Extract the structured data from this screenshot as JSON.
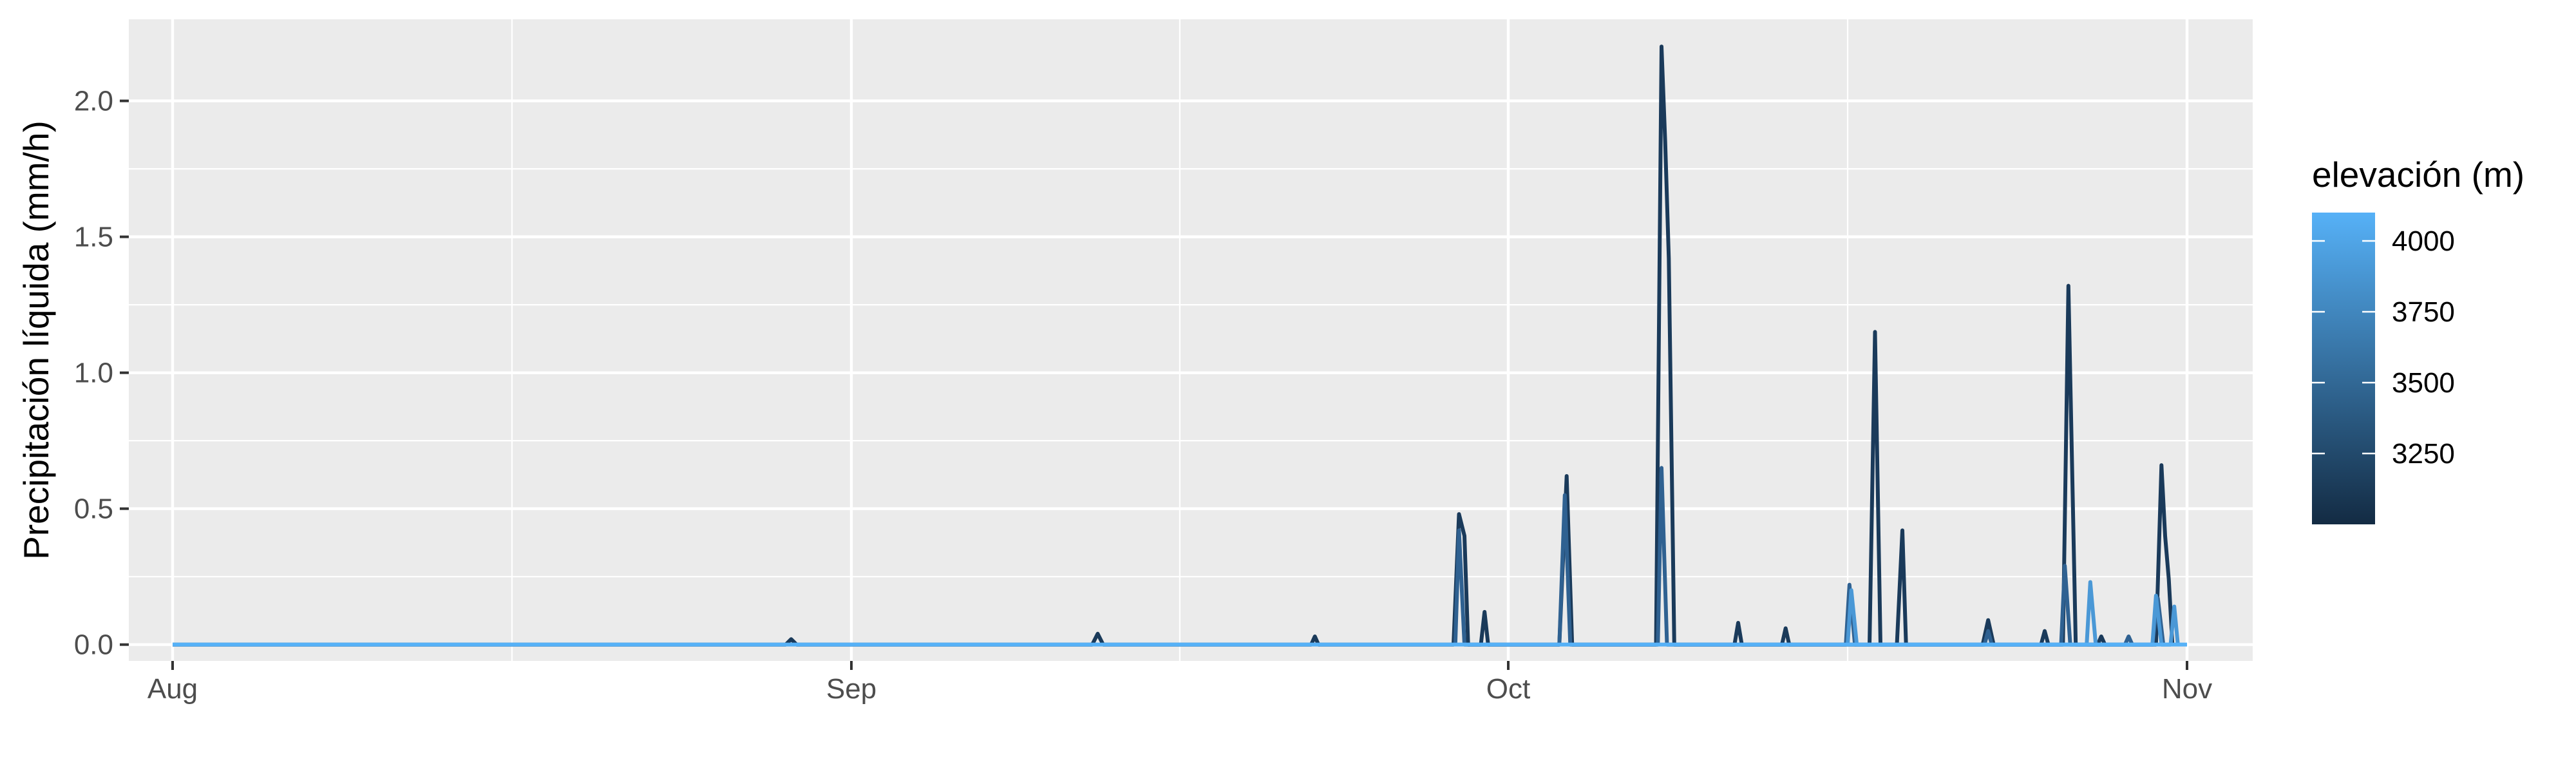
{
  "chart_data": {
    "type": "line",
    "title": "",
    "xlabel": "",
    "ylabel": "Precipitación líquida (mm/h)",
    "x_ticks": [
      "Aug",
      "Sep",
      "Oct",
      "Nov"
    ],
    "x_range": [
      "2023-07-30",
      "2023-11-04"
    ],
    "y_ticks": [
      "0.0",
      "0.5",
      "1.0",
      "1.5",
      "2.0"
    ],
    "ylim": [
      -0.06,
      2.3
    ],
    "grid": true,
    "background": "#EBEBEB",
    "legend": {
      "title": "elevación (m)",
      "position": "right",
      "type": "colorbar",
      "ticks": [
        "4000",
        "3750",
        "3500",
        "3250"
      ],
      "range": [
        3000,
        4100
      ],
      "low_color": "#132B43",
      "high_color": "#56B1F7"
    },
    "baseline_color": "#56B1F7",
    "series": [
      {
        "elevation": 3100,
        "color": "#1A3A5A",
        "points": [
          [
            "2023-08-01",
            0
          ],
          [
            "2023-08-29",
            0
          ],
          [
            "2023-08-29T06:00",
            0.02
          ],
          [
            "2023-08-29T12:00",
            0
          ],
          [
            "2023-09-12",
            0
          ],
          [
            "2023-09-12T06:00",
            0.04
          ],
          [
            "2023-09-12T12:00",
            0
          ],
          [
            "2023-09-22",
            0
          ],
          [
            "2023-09-22T04:00",
            0.03
          ],
          [
            "2023-09-22T08:00",
            0
          ],
          [
            "2023-09-28T12:00",
            0
          ],
          [
            "2023-09-28T18:00",
            0.48
          ],
          [
            "2023-09-29T00:00",
            0.4
          ],
          [
            "2023-09-29T04:00",
            0
          ],
          [
            "2023-09-29T18:00",
            0
          ],
          [
            "2023-09-29T22:00",
            0.12
          ],
          [
            "2023-09-30T02:00",
            0
          ],
          [
            "2023-10-03T08:00",
            0
          ],
          [
            "2023-10-03T16:00",
            0.62
          ],
          [
            "2023-10-03T22:00",
            0
          ],
          [
            "2023-10-07T18:00",
            0
          ],
          [
            "2023-10-08T00:00",
            2.2
          ],
          [
            "2023-10-08T04:00",
            1.85
          ],
          [
            "2023-10-08T08:00",
            1.42
          ],
          [
            "2023-10-08T14:00",
            0
          ],
          [
            "2023-10-11T08:00",
            0
          ],
          [
            "2023-10-11T12:00",
            0.08
          ],
          [
            "2023-10-11T16:00",
            0
          ],
          [
            "2023-10-13T12:00",
            0
          ],
          [
            "2023-10-13T16:00",
            0.06
          ],
          [
            "2023-10-13T20:00",
            0
          ],
          [
            "2023-10-17T12:00",
            0
          ],
          [
            "2023-10-17T18:00",
            1.15
          ],
          [
            "2023-10-18T00:00",
            0
          ],
          [
            "2023-10-18T18:00",
            0
          ],
          [
            "2023-10-19T00:00",
            0.42
          ],
          [
            "2023-10-19T04:00",
            0
          ],
          [
            "2023-10-22T16:00",
            0
          ],
          [
            "2023-10-22T22:00",
            0.09
          ],
          [
            "2023-10-23T04:00",
            0
          ],
          [
            "2023-10-25T08:00",
            0
          ],
          [
            "2023-10-25T12:00",
            0.05
          ],
          [
            "2023-10-25T16:00",
            0
          ],
          [
            "2023-10-26T08:00",
            0
          ],
          [
            "2023-10-26T14:00",
            1.32
          ],
          [
            "2023-10-26T22:00",
            0
          ],
          [
            "2023-10-27T22:00",
            0
          ],
          [
            "2023-10-28T02:00",
            0.03
          ],
          [
            "2023-10-28T06:00",
            0
          ],
          [
            "2023-10-30T14:00",
            0
          ],
          [
            "2023-10-30T20:00",
            0.66
          ],
          [
            "2023-10-31T00:00",
            0.4
          ],
          [
            "2023-10-31T04:00",
            0.24
          ],
          [
            "2023-10-31T08:00",
            0
          ]
        ]
      },
      {
        "elevation": 3500,
        "color": "#2F6191",
        "points": [
          [
            "2023-09-28T14:00",
            0
          ],
          [
            "2023-09-28T18:00",
            0.42
          ],
          [
            "2023-09-29T00:00",
            0
          ],
          [
            "2023-10-03T08:00",
            0
          ],
          [
            "2023-10-03T14:00",
            0.55
          ],
          [
            "2023-10-03T20:00",
            0
          ],
          [
            "2023-10-07T20:00",
            0
          ],
          [
            "2023-10-08T00:00",
            0.65
          ],
          [
            "2023-10-08T06:00",
            0
          ],
          [
            "2023-10-16T10:00",
            0
          ],
          [
            "2023-10-16T14:00",
            0.22
          ],
          [
            "2023-10-16T20:00",
            0
          ],
          [
            "2023-10-22T18:00",
            0
          ],
          [
            "2023-10-22T22:00",
            0.05
          ],
          [
            "2023-10-23T02:00",
            0
          ],
          [
            "2023-10-26T06:00",
            0
          ],
          [
            "2023-10-26T10:00",
            0.29
          ],
          [
            "2023-10-26T16:00",
            0
          ],
          [
            "2023-10-29T04:00",
            0
          ],
          [
            "2023-10-29T08:00",
            0.03
          ],
          [
            "2023-10-29T12:00",
            0
          ],
          [
            "2023-10-30T10:00",
            0
          ],
          [
            "2023-10-30T16:00",
            0.17
          ],
          [
            "2023-10-30T22:00",
            0
          ]
        ]
      },
      {
        "elevation": 3900,
        "color": "#4A98D6",
        "points": [
          [
            "2023-10-16T12:00",
            0
          ],
          [
            "2023-10-16T16:00",
            0.2
          ],
          [
            "2023-10-16T22:00",
            0
          ],
          [
            "2023-10-27T10:00",
            0
          ],
          [
            "2023-10-27T14:00",
            0.23
          ],
          [
            "2023-10-27T20:00",
            0
          ],
          [
            "2023-10-30T10:00",
            0
          ],
          [
            "2023-10-30T14:00",
            0.18
          ],
          [
            "2023-10-30T20:00",
            0
          ],
          [
            "2023-10-31T06:00",
            0
          ],
          [
            "2023-10-31T10:00",
            0.14
          ],
          [
            "2023-10-31T14:00",
            0
          ]
        ]
      }
    ]
  }
}
